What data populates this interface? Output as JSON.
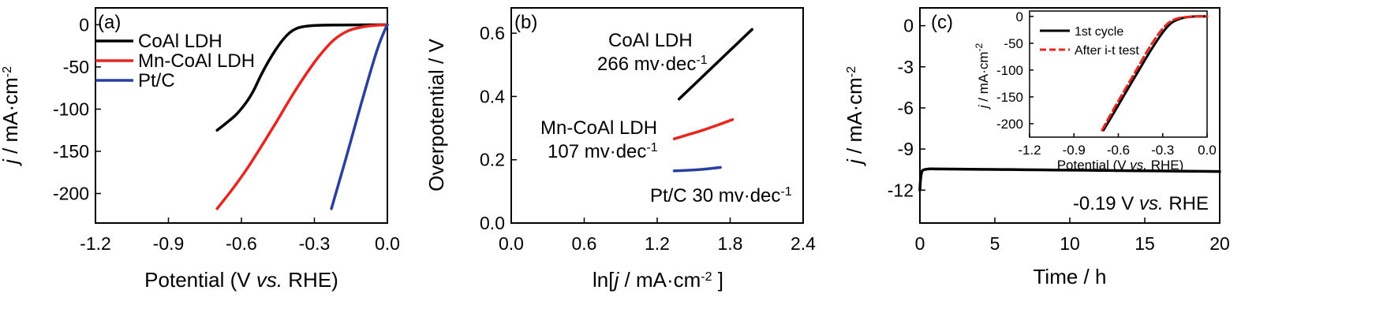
{
  "chart_data": [
    {
      "type": "line",
      "panel_label": "(a)",
      "xlabel_parts": [
        "Potential (V ",
        "vs.",
        " RHE)"
      ],
      "ylabel_parts": [
        "j",
        " / mA·cm",
        "-2"
      ],
      "xlim": [
        -1.2,
        0.0
      ],
      "ylim": [
        -235,
        20
      ],
      "xticks": [
        -1.2,
        -0.9,
        -0.6,
        -0.3,
        0.0
      ],
      "xtick_labels": [
        "-1.2",
        "-0.9",
        "-0.6",
        "-0.3",
        "0.0"
      ],
      "yticks": [
        0,
        -50,
        -100,
        -150,
        -200
      ],
      "ytick_labels": [
        "0",
        "-50",
        "-100",
        "-150",
        "-200"
      ],
      "legend_position": "top-left",
      "series": [
        {
          "name": "CoAl LDH",
          "color": "#000000",
          "x": [
            -0.7,
            -0.66,
            -0.62,
            -0.58,
            -0.55,
            -0.52,
            -0.49,
            -0.46,
            -0.43,
            -0.4,
            -0.37,
            -0.34,
            -0.31,
            -0.27,
            -0.2,
            -0.1,
            0.0
          ],
          "y": [
            -125,
            -116,
            -106,
            -92,
            -78,
            -60,
            -44,
            -30,
            -18,
            -9,
            -4,
            -2,
            -1,
            -0.5,
            -0.3,
            -0.1,
            0
          ]
        },
        {
          "name": "Mn-CoAl LDH",
          "color": "#e8251f",
          "x": [
            -0.7,
            -0.64,
            -0.58,
            -0.52,
            -0.46,
            -0.4,
            -0.34,
            -0.28,
            -0.22,
            -0.16,
            -0.1,
            -0.06,
            -0.03,
            0.0
          ],
          "y": [
            -218,
            -196,
            -172,
            -145,
            -117,
            -88,
            -61,
            -37,
            -18,
            -7,
            -2.5,
            -1,
            -0.3,
            0
          ]
        },
        {
          "name": "Pt/C",
          "color": "#2b3fa0",
          "x": [
            -0.23,
            -0.2,
            -0.17,
            -0.14,
            -0.11,
            -0.08,
            -0.05,
            -0.03,
            -0.01,
            0.0
          ],
          "y": [
            -218,
            -188,
            -158,
            -127,
            -96,
            -66,
            -37,
            -20,
            -6,
            0
          ]
        }
      ]
    },
    {
      "type": "line",
      "panel_label": "(b)",
      "xlabel_parts": [
        "ln[",
        "j",
        " / mA·cm",
        "-2",
        " ]"
      ],
      "ylabel": "Overpotential / V",
      "xlim": [
        0.0,
        2.4
      ],
      "ylim": [
        0.0,
        0.68
      ],
      "xticks": [
        0.0,
        0.6,
        1.2,
        1.8,
        2.4
      ],
      "xtick_labels": [
        "0.0",
        "0.6",
        "1.2",
        "1.8",
        "2.4"
      ],
      "yticks": [
        0.0,
        0.2,
        0.4,
        0.6
      ],
      "ytick_labels": [
        "0.0",
        "0.2",
        "0.4",
        "0.6"
      ],
      "series": [
        {
          "name": "CoAl LDH",
          "color": "#000000",
          "x": [
            1.38,
            1.5,
            1.62,
            1.74,
            1.86,
            1.98
          ],
          "y": [
            0.392,
            0.436,
            0.48,
            0.524,
            0.568,
            0.612
          ]
        },
        {
          "name": "Mn-CoAl LDH",
          "color": "#e8251f",
          "x": [
            1.34,
            1.46,
            1.58,
            1.7,
            1.82
          ],
          "y": [
            0.266,
            0.28,
            0.294,
            0.31,
            0.327
          ]
        },
        {
          "name": "Pt/C",
          "color": "#2b3fa0",
          "x": [
            1.34,
            1.46,
            1.58,
            1.72
          ],
          "y": [
            0.165,
            0.167,
            0.17,
            0.176
          ]
        }
      ],
      "annotations": [
        {
          "line1": "CoAl LDH",
          "line2_main": "266 mv·dec",
          "line2_sup": "-1"
        },
        {
          "line1": "Mn-CoAl LDH",
          "line2_main": "107 mv·dec",
          "line2_sup": "-1"
        },
        {
          "line1": "",
          "line2_main": "Pt/C  30 mv·dec",
          "line2_sup": "-1"
        }
      ]
    },
    {
      "type": "line",
      "panel_label": "(c)",
      "xlabel": "Time / h",
      "ylabel_parts": [
        "j",
        " / mA·cm",
        "-2"
      ],
      "xlim": [
        0,
        20
      ],
      "ylim": [
        -14.4,
        1.3
      ],
      "xticks": [
        0,
        5,
        10,
        15,
        20
      ],
      "xtick_labels": [
        "0",
        "5",
        "10",
        "15",
        "20"
      ],
      "yticks": [
        0,
        -3,
        -6,
        -9,
        -12
      ],
      "ytick_labels": [
        "0",
        "-3",
        "-6",
        "-9",
        "-12"
      ],
      "annotation_parts": [
        "-0.19 V ",
        "vs.",
        " RHE"
      ],
      "series": [
        {
          "name": "",
          "color": "#000000",
          "x": [
            0.0,
            0.03,
            0.08,
            0.15,
            0.3,
            0.6,
            1.0,
            2,
            4,
            6,
            8,
            10,
            12,
            14,
            16,
            18,
            20
          ],
          "y": [
            -12.0,
            -11.4,
            -10.9,
            -10.6,
            -10.5,
            -10.45,
            -10.45,
            -10.46,
            -10.48,
            -10.5,
            -10.52,
            -10.54,
            -10.56,
            -10.58,
            -10.6,
            -10.62,
            -10.64
          ]
        }
      ],
      "inset": {
        "xlabel_parts": [
          "Potential (V ",
          "vs.",
          " RHE)"
        ],
        "ylabel_parts": [
          "j",
          " / mA·cm",
          "-2"
        ],
        "xlim": [
          -1.2,
          0.0
        ],
        "ylim": [
          -225,
          10
        ],
        "xticks": [
          -1.2,
          -0.9,
          -0.6,
          -0.3,
          0.0
        ],
        "xtick_labels": [
          "-1.2",
          "-0.9",
          "-0.6",
          "-0.3",
          "0.0"
        ],
        "yticks": [
          0,
          -50,
          -100,
          -150,
          -200
        ],
        "ytick_labels": [
          "0",
          "-50",
          "-100",
          "-150",
          "-200"
        ],
        "legend_position": "top-left",
        "series": [
          {
            "name": "1st cycle",
            "color": "#000000",
            "dash": false,
            "x": [
              -0.7,
              -0.62,
              -0.54,
              -0.46,
              -0.38,
              -0.3,
              -0.24,
              -0.18,
              -0.12,
              -0.06,
              0.0
            ],
            "y": [
              -212,
              -175,
              -137,
              -100,
              -63,
              -30,
              -12,
              -4,
              -1,
              0,
              0
            ]
          },
          {
            "name": "After i-t test",
            "color": "#e8251f",
            "dash": true,
            "x": [
              -0.71,
              -0.63,
              -0.55,
              -0.47,
              -0.39,
              -0.31,
              -0.25,
              -0.19,
              -0.13,
              -0.07,
              0.0
            ],
            "y": [
              -212,
              -172,
              -134,
              -96,
              -58,
              -26,
              -10,
              -3,
              -1,
              0,
              0
            ]
          }
        ]
      }
    }
  ]
}
